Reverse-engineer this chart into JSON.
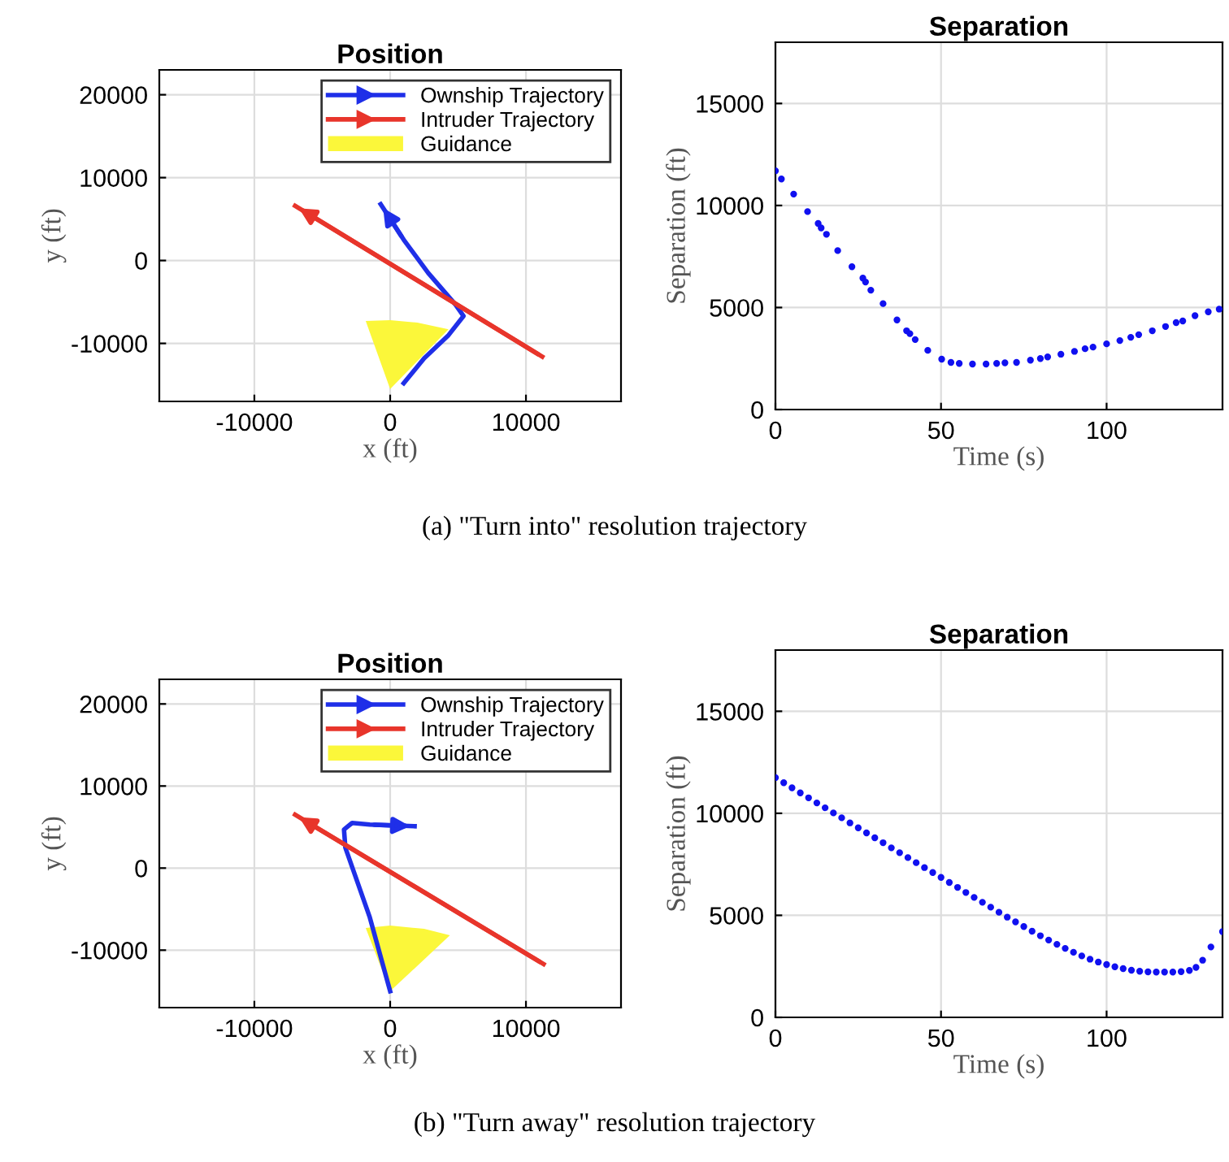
{
  "chart_data": [
    {
      "type": "line",
      "title": "Position",
      "xlabel": "x (ft)",
      "ylabel": "y (ft)",
      "xlim": [
        -17000,
        17000
      ],
      "ylim": [
        -17000,
        23000
      ],
      "xticks": [
        -10000,
        0,
        10000
      ],
      "yticks": [
        -10000,
        0,
        10000,
        20000
      ],
      "grid": true,
      "legend": "top right",
      "annotations": [
        "(a) \"Turn into\" resolution trajectory"
      ],
      "series": [
        {
          "name": "Ownship Trajectory",
          "type": "line",
          "color": "#1f2fe8",
          "x": [
            1000,
            2500,
            4300,
            5400,
            4800,
            2800,
            1000,
            -700
          ],
          "values": [
            -14800,
            -11800,
            -9000,
            -6700,
            -5300,
            -1500,
            2500,
            6800
          ]
        },
        {
          "name": "Intruder Trajectory",
          "type": "line",
          "color": "#e8352b",
          "x": [
            11200,
            -7000
          ],
          "values": [
            -11600,
            6600
          ]
        },
        {
          "name": "Guidance",
          "type": "area",
          "color": "#fbf73a",
          "x": [
            0,
            -1800,
            0,
            2000,
            4300
          ],
          "values": [
            -15500,
            -7300,
            -7200,
            -7500,
            -8300
          ]
        }
      ]
    },
    {
      "type": "scatter",
      "title": "Separation",
      "xlabel": "Time (s)",
      "ylabel": "Separation (ft)",
      "xlim": [
        0,
        135
      ],
      "ylim": [
        0,
        18000
      ],
      "xticks": [
        0,
        50,
        100
      ],
      "yticks": [
        0,
        5000,
        10000,
        15000
      ],
      "grid": true,
      "marker": "circle",
      "series": [
        {
          "color": "#1010f0",
          "x": [
            0,
            1.8,
            5.5,
            9.7,
            12.9,
            13.8,
            15.4,
            18.8,
            23.1,
            26.4,
            27.2,
            28.8,
            32.5,
            36.7,
            39.6,
            40.6,
            42.2,
            46,
            50.2,
            53,
            55.5,
            59.5,
            63.6,
            66.8,
            69.3,
            72.8,
            77,
            80,
            82.2,
            86.2,
            90.3,
            93.5,
            95.9,
            100,
            104,
            107.3,
            109.7,
            113.8,
            117.8,
            121,
            123,
            126.7,
            130.7,
            134
          ],
          "values": [
            11700,
            11300,
            10560,
            9700,
            9120,
            8900,
            8590,
            7790,
            7000,
            6440,
            6250,
            5850,
            5190,
            4390,
            3860,
            3720,
            3430,
            2900,
            2470,
            2310,
            2260,
            2230,
            2230,
            2260,
            2290,
            2310,
            2420,
            2500,
            2580,
            2710,
            2850,
            2980,
            3060,
            3220,
            3380,
            3540,
            3670,
            3860,
            4070,
            4260,
            4340,
            4600,
            4790,
            4920
          ]
        }
      ]
    },
    {
      "type": "line",
      "title": "Position",
      "xlabel": "x (ft)",
      "ylabel": "y (ft)",
      "xlim": [
        -17000,
        17000
      ],
      "ylim": [
        -17000,
        23000
      ],
      "xticks": [
        -10000,
        0,
        10000
      ],
      "yticks": [
        -10000,
        0,
        10000,
        20000
      ],
      "grid": true,
      "legend": "top right",
      "annotations": [
        "(b) \"Turn away\" resolution trajectory"
      ],
      "series": [
        {
          "name": "Ownship Trajectory",
          "type": "line",
          "color": "#1f2fe8",
          "x": [
            0,
            -1500,
            -3300,
            -3400,
            -2800,
            -1500,
            1800
          ],
          "values": [
            -15000,
            -6000,
            2500,
            4700,
            5500,
            5300,
            5100
          ]
        },
        {
          "name": "Intruder Trajectory",
          "type": "line",
          "color": "#e8352b",
          "x": [
            11300,
            -7000
          ],
          "values": [
            -11700,
            6500
          ]
        },
        {
          "name": "Guidance",
          "type": "area",
          "color": "#fbf73a",
          "x": [
            0,
            -1800,
            0,
            2500,
            4400
          ],
          "values": [
            -15000,
            -7300,
            -7000,
            -7400,
            -8200
          ]
        }
      ]
    },
    {
      "type": "scatter",
      "title": "Separation",
      "xlabel": "Time (s)",
      "ylabel": "Separation (ft)",
      "xlim": [
        0,
        135
      ],
      "ylim": [
        0,
        18000
      ],
      "xticks": [
        0,
        50,
        100
      ],
      "yticks": [
        0,
        5000,
        10000,
        15000
      ],
      "grid": true,
      "marker": "circle",
      "series": [
        {
          "color": "#1010f0",
          "x": [
            0,
            2.5,
            5,
            7.5,
            10,
            12.5,
            15,
            17.5,
            20,
            22.5,
            25,
            27.5,
            30,
            32.5,
            35,
            37.5,
            40,
            42.5,
            45,
            47.5,
            50,
            52.5,
            55,
            57.5,
            60,
            62.5,
            65,
            67.5,
            70,
            72.5,
            75,
            77.5,
            80,
            82.5,
            85,
            87.5,
            90,
            92.5,
            95,
            97.5,
            100,
            102.5,
            105,
            107.5,
            110,
            112.5,
            115,
            117.5,
            120,
            122.5,
            125,
            127,
            129,
            131.5,
            135
          ],
          "values": [
            11750,
            11500,
            11250,
            11000,
            10760,
            10510,
            10270,
            10020,
            9780,
            9530,
            9290,
            9040,
            8800,
            8560,
            8310,
            8070,
            7830,
            7580,
            7340,
            7100,
            6860,
            6610,
            6370,
            6120,
            5880,
            5640,
            5400,
            5150,
            4910,
            4680,
            4450,
            4220,
            4000,
            3790,
            3580,
            3380,
            3190,
            3010,
            2850,
            2710,
            2590,
            2480,
            2390,
            2310,
            2260,
            2230,
            2220,
            2220,
            2220,
            2240,
            2300,
            2450,
            2800,
            3450,
            4200
          ]
        }
      ]
    }
  ]
}
